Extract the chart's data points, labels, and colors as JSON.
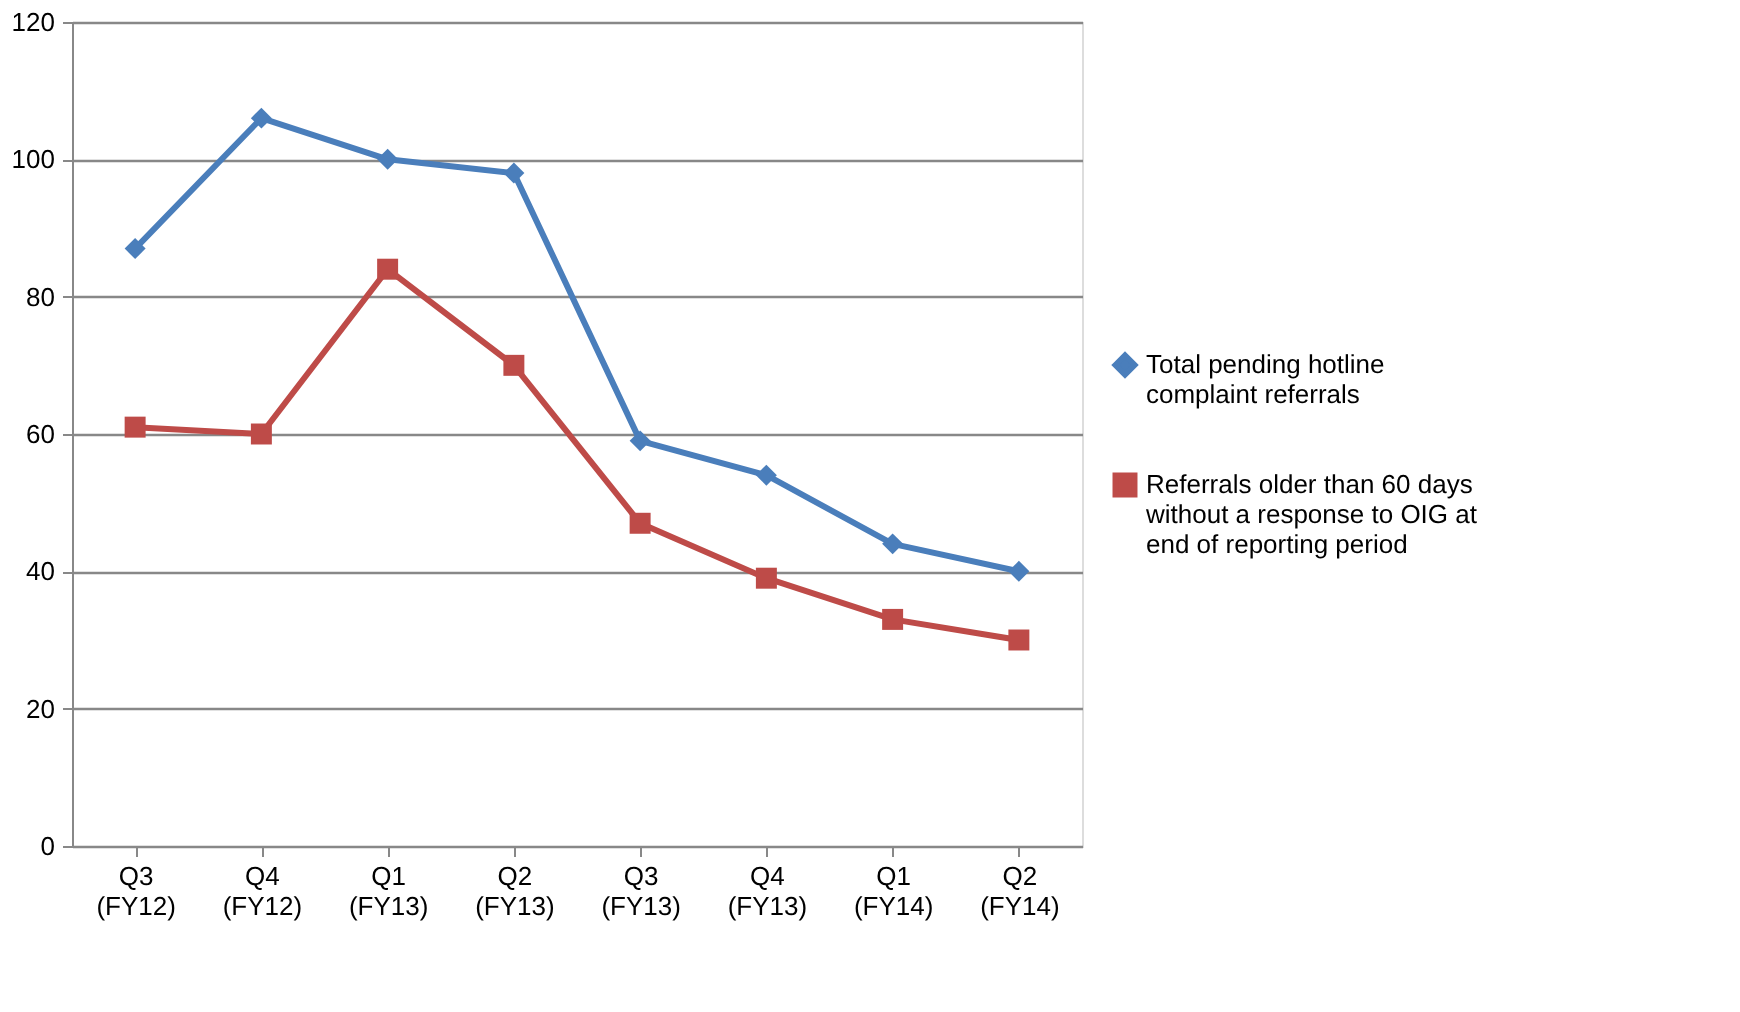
{
  "chart_data": {
    "type": "line",
    "categories": [
      "Q3 (FY12)",
      "Q4 (FY12)",
      "Q1 (FY13)",
      "Q2 (FY13)",
      "Q3 (FY13)",
      "Q4 (FY13)",
      "Q1 (FY14)",
      "Q2 (FY14)"
    ],
    "series": [
      {
        "name": "Total pending hotline complaint referrals",
        "color": "#4a7ebb",
        "marker": "diamond",
        "values": [
          87,
          106,
          100,
          98,
          59,
          54,
          44,
          40
        ]
      },
      {
        "name": "Referrals older than 60 days without a response to OIG at end of reporting period",
        "color": "#be4b48",
        "marker": "square",
        "values": [
          61,
          60,
          84,
          70,
          47,
          39,
          33,
          30
        ]
      }
    ],
    "ylim": [
      0,
      120
    ],
    "yticks": [
      0,
      20,
      40,
      60,
      80,
      100,
      120
    ],
    "grid": "y",
    "legend": "right",
    "line_style": "solid"
  }
}
